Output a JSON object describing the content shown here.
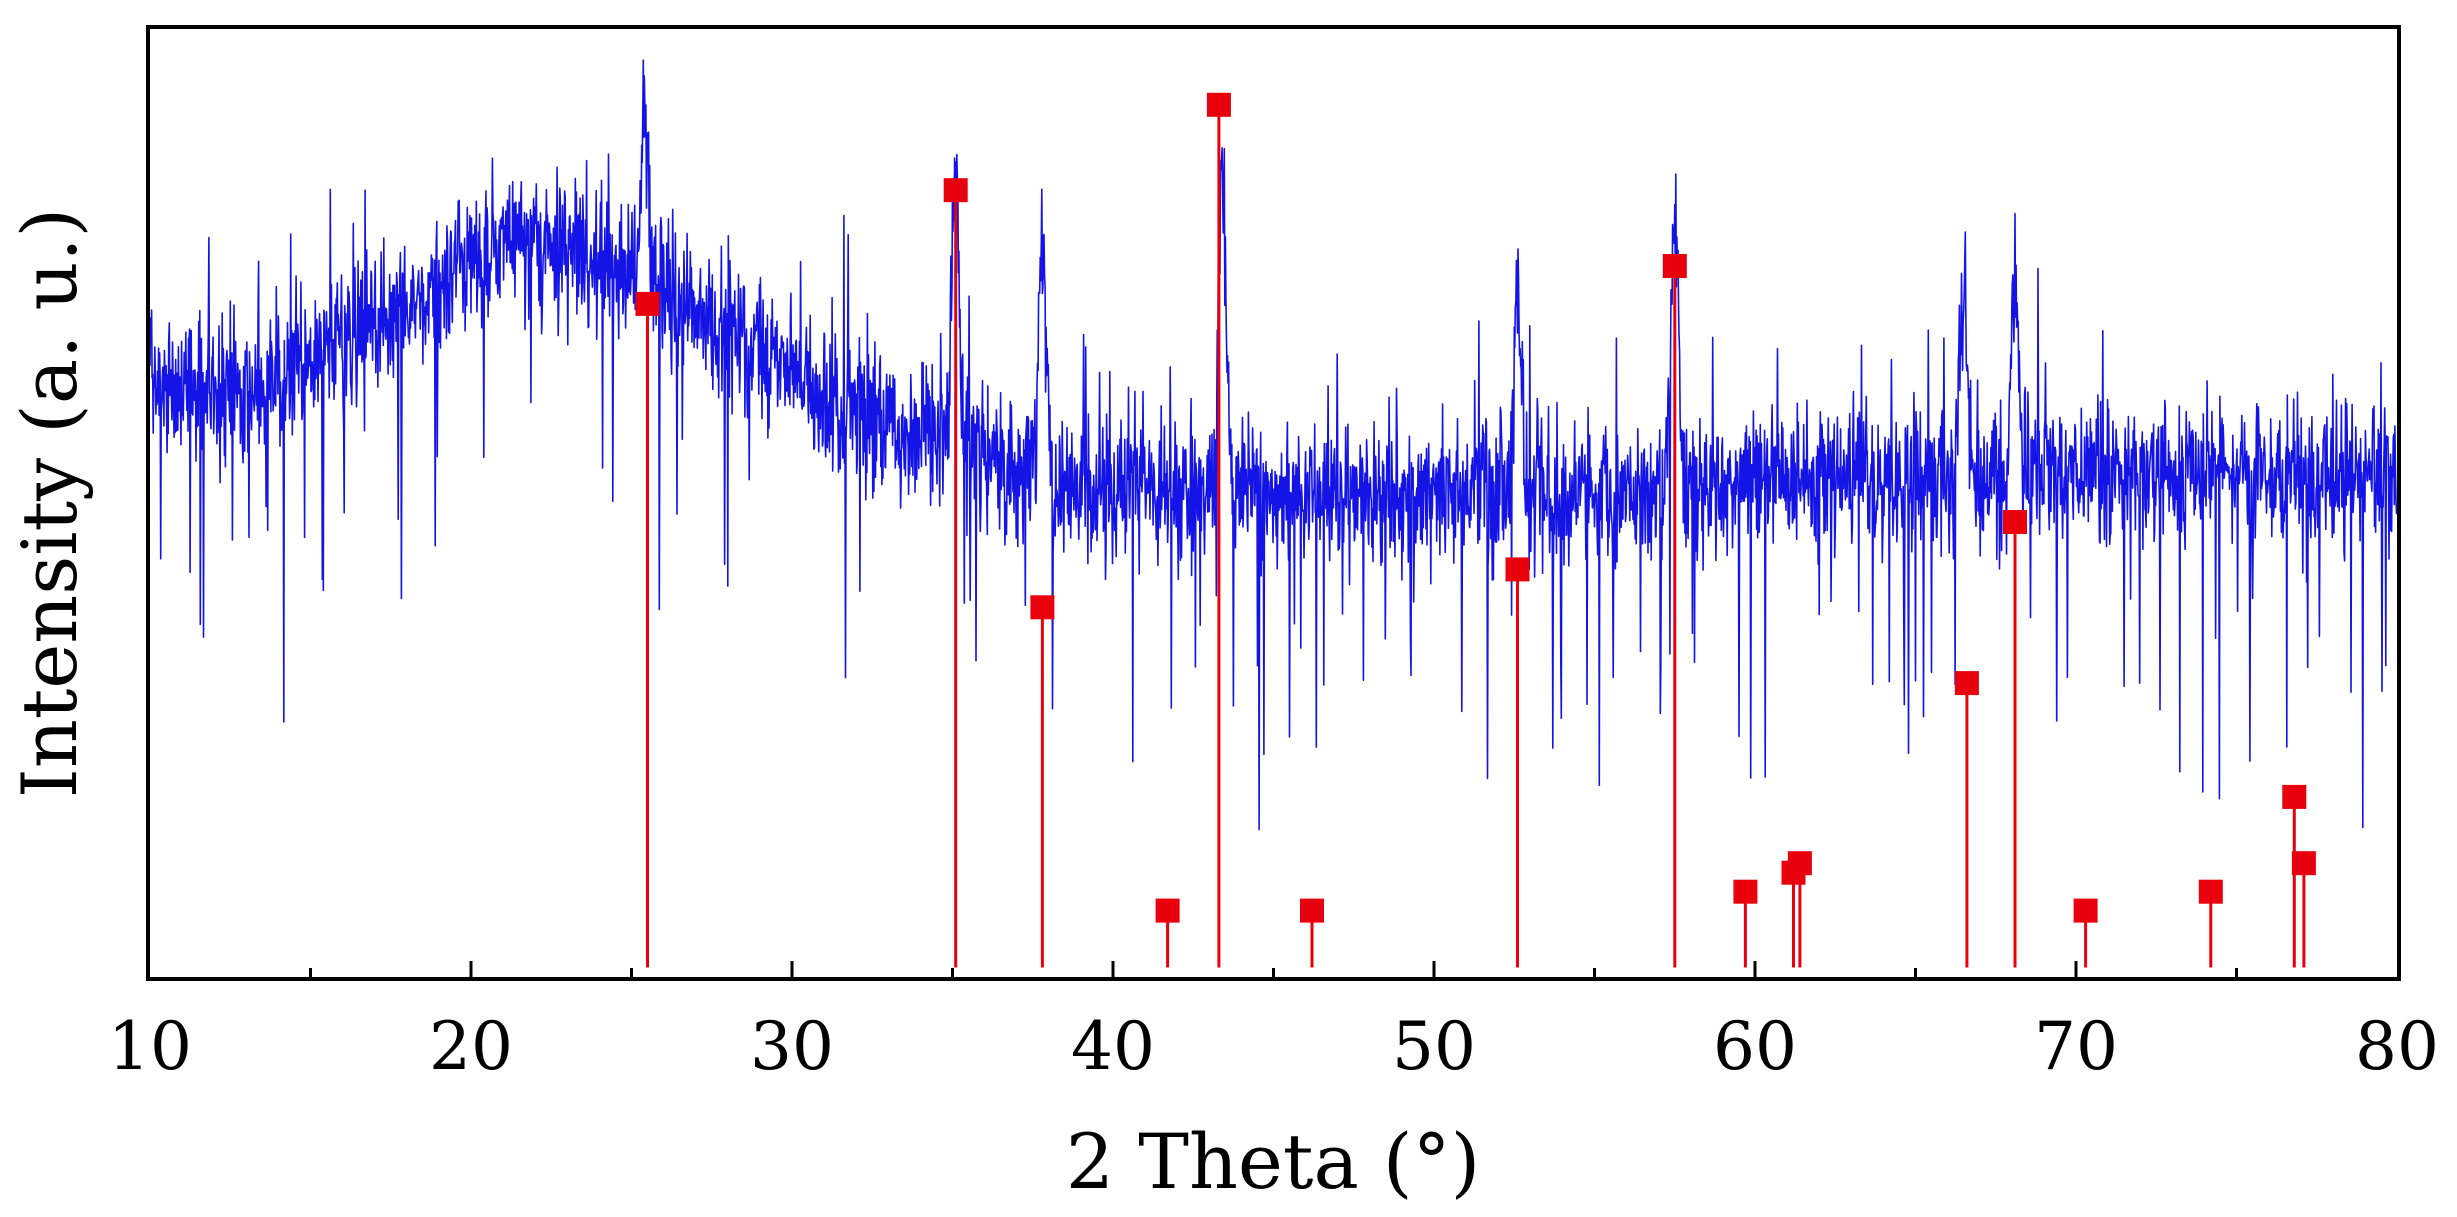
{
  "chart_data": {
    "type": "line",
    "title": "",
    "xlabel": "2 Theta (°)",
    "ylabel": "Intensity (a. u.)",
    "xlim": [
      10,
      80
    ],
    "ylim": [
      0,
      100
    ],
    "x_ticks": [
      10,
      20,
      30,
      40,
      50,
      60,
      70,
      80
    ],
    "x_tick_labels": [
      "10",
      "20",
      "30",
      "40",
      "50",
      "60",
      "70",
      "80"
    ],
    "y_ticks_shown": false,
    "grid": false,
    "legend": "none",
    "colors": {
      "pattern": "#1414e6",
      "reference": "#e8000d",
      "axes": "#000000"
    },
    "series": [
      {
        "style": "noisy-line",
        "color": "#1414e6",
        "baseline_profile": {
          "x": [
            10,
            12,
            14,
            16,
            18,
            20,
            21.5,
            23,
            25,
            27,
            29,
            31,
            33,
            35,
            37,
            39,
            41,
            44,
            47,
            50,
            53,
            56,
            59,
            62,
            65,
            68,
            71,
            74,
            77,
            80
          ],
          "y": [
            63,
            62,
            63,
            67,
            71,
            76,
            78,
            77,
            74,
            70,
            66,
            61,
            58,
            56,
            53,
            51,
            51,
            51,
            51,
            51,
            51,
            51,
            52,
            53,
            53,
            53,
            53,
            53,
            53,
            53
          ]
        },
        "noise_amplitude": 11,
        "peaks": [
          {
            "x": 25.4,
            "height": 92
          },
          {
            "x": 35.1,
            "height": 85
          },
          {
            "x": 37.8,
            "height": 77
          },
          {
            "x": 43.4,
            "height": 85
          },
          {
            "x": 52.6,
            "height": 74
          },
          {
            "x": 57.5,
            "height": 80
          },
          {
            "x": 66.5,
            "height": 72
          },
          {
            "x": 68.1,
            "height": 73
          }
        ]
      },
      {
        "style": "stick",
        "color": "#e8000d",
        "sticks": [
          {
            "x": 25.5,
            "y": 71
          },
          {
            "x": 35.1,
            "y": 83
          },
          {
            "x": 37.8,
            "y": 39
          },
          {
            "x": 43.3,
            "y": 92
          },
          {
            "x": 41.7,
            "y": 7
          },
          {
            "x": 46.2,
            "y": 7
          },
          {
            "x": 52.6,
            "y": 43
          },
          {
            "x": 57.5,
            "y": 75
          },
          {
            "x": 59.7,
            "y": 9
          },
          {
            "x": 61.2,
            "y": 11
          },
          {
            "x": 61.4,
            "y": 12
          },
          {
            "x": 66.6,
            "y": 31
          },
          {
            "x": 68.1,
            "y": 48
          },
          {
            "x": 70.3,
            "y": 7
          },
          {
            "x": 74.2,
            "y": 9
          },
          {
            "x": 76.8,
            "y": 19
          },
          {
            "x": 77.1,
            "y": 12
          }
        ]
      }
    ]
  }
}
